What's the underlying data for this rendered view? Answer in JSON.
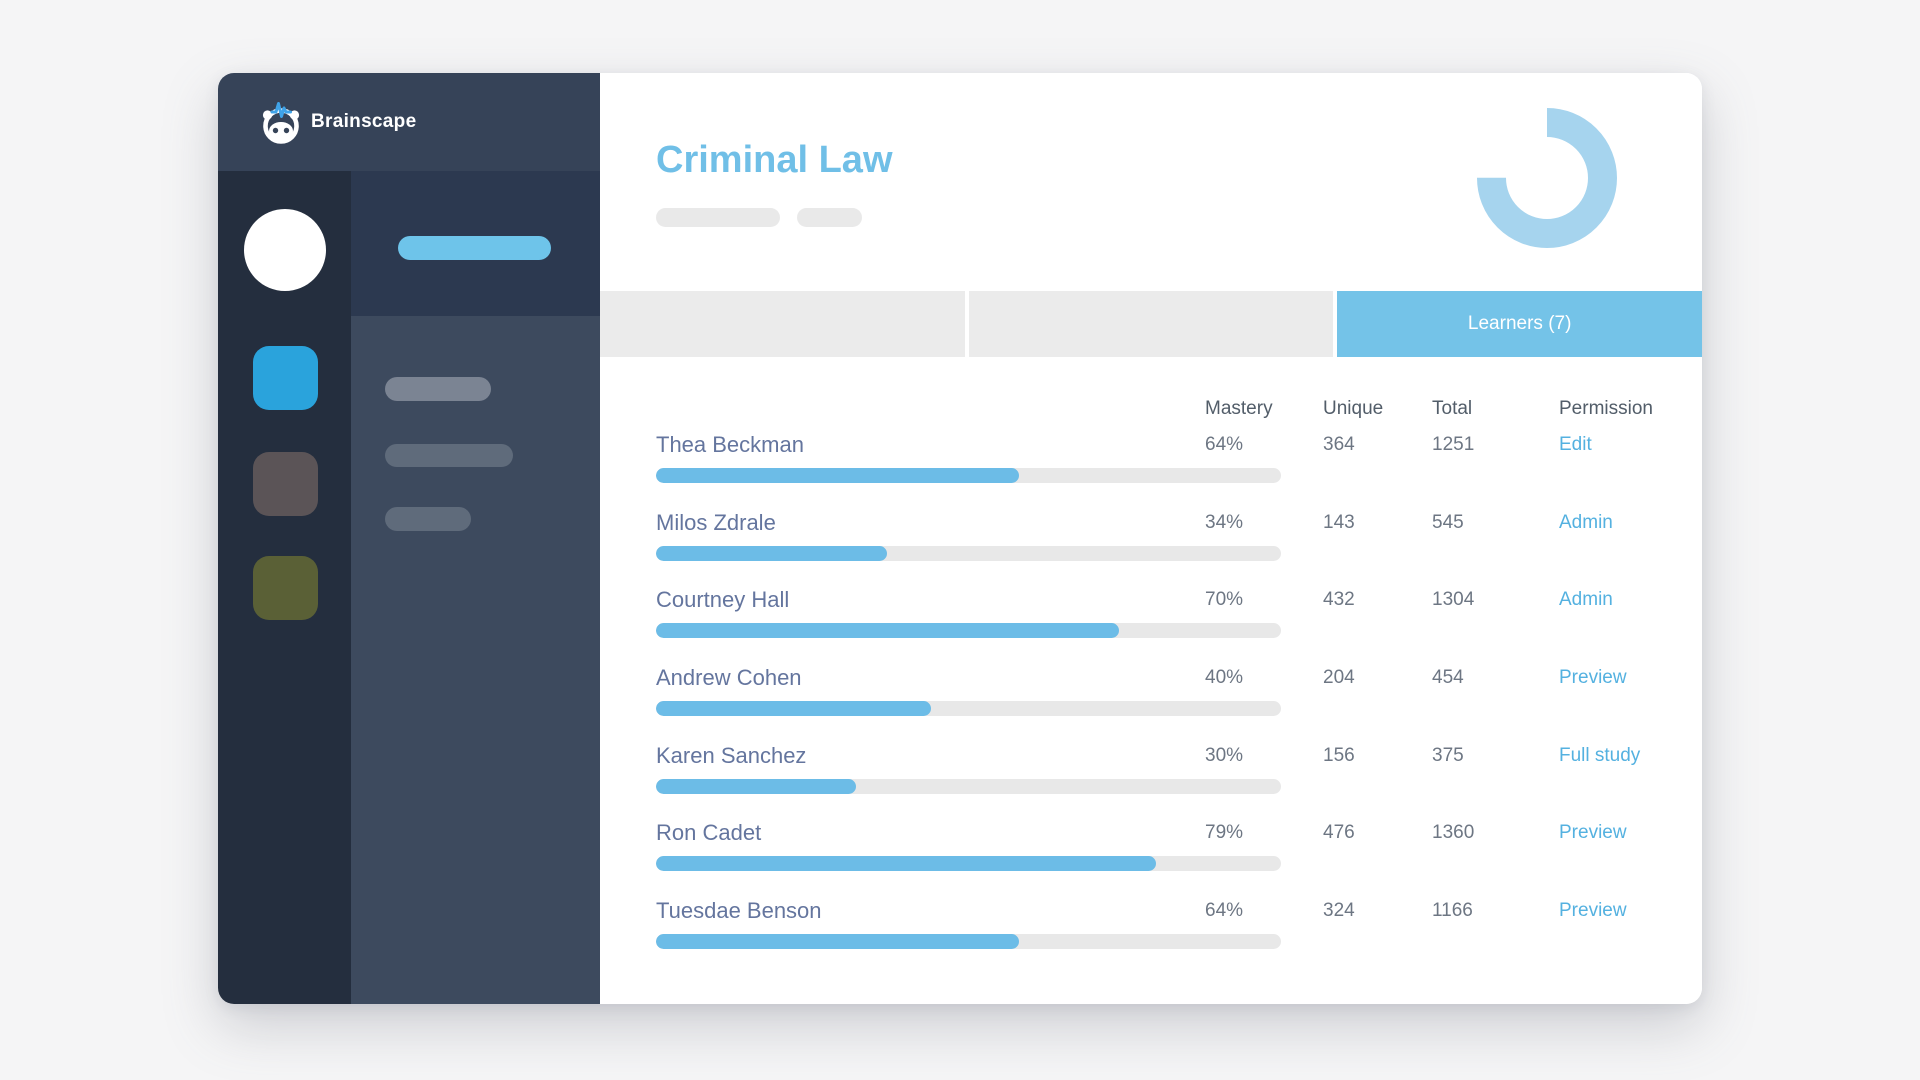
{
  "brand": {
    "name": "Brainscape",
    "logo_icon": "robot-head-with-pulse"
  },
  "page": {
    "title": "Criminal Law"
  },
  "tabs": [
    {
      "label": "",
      "active": false
    },
    {
      "label": "",
      "active": false
    },
    {
      "label": "Learners (7)",
      "active": true
    }
  ],
  "chart": {
    "type": "donut-arc",
    "percent": 75,
    "color": "#a6d4ee"
  },
  "table": {
    "headers": {
      "mastery": "Mastery",
      "unique": "Unique",
      "total": "Total",
      "permission": "Permission"
    },
    "rows": [
      {
        "name": "Thea Beckman",
        "mastery": "64%",
        "unique": "364",
        "total": "1251",
        "permission": "Edit",
        "bar_percent": 58
      },
      {
        "name": "Milos Zdrale",
        "mastery": "34%",
        "unique": "143",
        "total": "545",
        "permission": "Admin",
        "bar_percent": 37
      },
      {
        "name": "Courtney Hall",
        "mastery": "70%",
        "unique": "432",
        "total": "1304",
        "permission": "Admin",
        "bar_percent": 74
      },
      {
        "name": "Andrew Cohen",
        "mastery": "40%",
        "unique": "204",
        "total": "454",
        "permission": "Preview",
        "bar_percent": 44
      },
      {
        "name": "Karen Sanchez",
        "mastery": "30%",
        "unique": "156",
        "total": "375",
        "permission": "Full study",
        "bar_percent": 32
      },
      {
        "name": "Ron Cadet",
        "mastery": "79%",
        "unique": "476",
        "total": "1360",
        "permission": "Preview",
        "bar_percent": 80
      },
      {
        "name": "Tuesdae Benson",
        "mastery": "64%",
        "unique": "324",
        "total": "1166",
        "permission": "Preview",
        "bar_percent": 58
      }
    ]
  },
  "colors": {
    "accent_blue": "#6cbce7",
    "tab_blue": "#74c3e8",
    "title_blue": "#70bfe7",
    "link_blue": "#54b1e0",
    "arc_blue": "#a6d4ee",
    "sidebar_header": "#364358",
    "rail_dark": "#242e3e",
    "subnav": "#3d4a5e",
    "subnav_active": "#2c3950",
    "track_gray": "#e8e8e8"
  }
}
